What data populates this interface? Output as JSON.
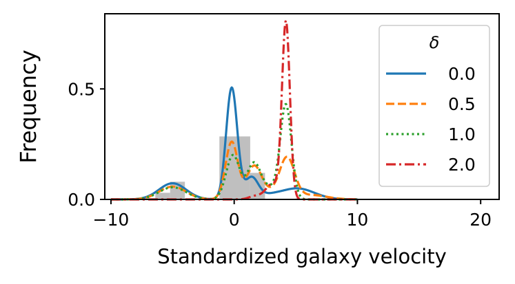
{
  "chart_data": {
    "type": "line",
    "title": "",
    "xlabel": "Standardized galaxy velocity",
    "ylabel": "Frequency",
    "xlim": [
      -10.5,
      21.5
    ],
    "ylim": [
      0,
      0.84
    ],
    "xticks": [
      -10,
      0,
      10,
      20
    ],
    "xtick_labels": [
      "−10",
      "0",
      "10",
      "20"
    ],
    "yticks": [
      0,
      0.5
    ],
    "ytick_labels": [
      "0.0",
      "0.5"
    ],
    "grid": false,
    "legend": {
      "title": "δ",
      "placement": "upper right",
      "entries": [
        "0.0",
        "0.5",
        "1.0",
        "2.0"
      ]
    },
    "histogram": {
      "color": "#bfbfbf",
      "bins": [
        {
          "x0": -10,
          "x1": -8.8,
          "value": 0.005
        },
        {
          "x0": -8.8,
          "x1": -7.6,
          "value": 0.005
        },
        {
          "x0": -7.6,
          "x1": -6.4,
          "value": 0.005
        },
        {
          "x0": -6.4,
          "x1": -5.2,
          "value": 0.03
        },
        {
          "x0": -5.2,
          "x1": -4.0,
          "value": 0.08
        },
        {
          "x0": -4.0,
          "x1": -2.8,
          "value": 0.005
        },
        {
          "x0": -2.8,
          "x1": -1.6,
          "value": 0.0
        },
        {
          "x0": -1.2,
          "x1": 1.3,
          "value": 0.285
        },
        {
          "x0": 1.3,
          "x1": 2.5,
          "value": 0.12
        },
        {
          "x0": 5.0,
          "x1": 6.2,
          "value": 0.005
        },
        {
          "x0": 6.2,
          "x1": 7.4,
          "value": 0.005
        },
        {
          "x0": 7.4,
          "x1": 8.6,
          "value": 0.005
        },
        {
          "x0": 8.6,
          "x1": 10.0,
          "value": 0.005
        }
      ]
    },
    "series": [
      {
        "name": "0.0",
        "color": "#1f77b4",
        "dash": "solid",
        "x_range": [
          -10,
          10
        ],
        "components": [
          {
            "mean": -0.2,
            "sd": 0.45,
            "height": 0.505
          },
          {
            "mean": -5.0,
            "sd": 1.1,
            "height": 0.073
          },
          {
            "mean": 1.4,
            "sd": 0.55,
            "height": 0.098
          },
          {
            "mean": 5.1,
            "sd": 1.4,
            "height": 0.05
          },
          {
            "mean": 2.8,
            "sd": 0.8,
            "height": 0.012
          }
        ]
      },
      {
        "name": "0.5",
        "color": "#ff7f0e",
        "dash": "dashed",
        "x_range": [
          -10,
          10
        ],
        "components": [
          {
            "mean": -0.2,
            "sd": 0.5,
            "height": 0.26
          },
          {
            "mean": -5.0,
            "sd": 1.1,
            "height": 0.058
          },
          {
            "mean": 1.6,
            "sd": 0.6,
            "height": 0.145
          },
          {
            "mean": 4.3,
            "sd": 0.6,
            "height": 0.18
          },
          {
            "mean": 2.9,
            "sd": 0.8,
            "height": 0.03
          },
          {
            "mean": 6.2,
            "sd": 1.3,
            "height": 0.02
          }
        ]
      },
      {
        "name": "1.0",
        "color": "#2ca02c",
        "dash": "dotted",
        "x_range": [
          -10,
          10
        ],
        "components": [
          {
            "mean": -0.1,
            "sd": 0.55,
            "height": 0.2
          },
          {
            "mean": -5.0,
            "sd": 1.1,
            "height": 0.055
          },
          {
            "mean": 1.6,
            "sd": 0.55,
            "height": 0.16
          },
          {
            "mean": 4.2,
            "sd": 0.45,
            "height": 0.42
          },
          {
            "mean": 3.0,
            "sd": 0.7,
            "height": 0.05
          }
        ]
      },
      {
        "name": "2.0",
        "color": "#d62728",
        "dash": "dashdot",
        "x_range": [
          -10,
          10
        ],
        "components": [
          {
            "mean": 4.2,
            "sd": 0.32,
            "height": 0.8
          },
          {
            "mean": 3.1,
            "sd": 0.55,
            "height": 0.07
          },
          {
            "mean": 1.7,
            "sd": 0.5,
            "height": 0.015
          }
        ]
      }
    ]
  }
}
